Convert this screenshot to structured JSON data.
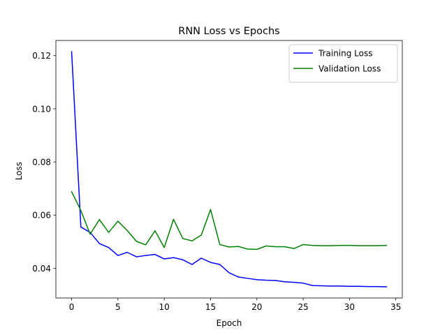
{
  "chart_data": {
    "type": "line",
    "title": "RNN Loss vs Epochs",
    "xlabel": "Epoch",
    "ylabel": "Loss",
    "xlim": [
      -1.7,
      35.7
    ],
    "ylim": [
      0.0288,
      0.1257
    ],
    "xticks": [
      0,
      5,
      10,
      15,
      20,
      25,
      30,
      35
    ],
    "yticks": [
      0.04,
      0.06,
      0.08,
      0.1,
      0.12
    ],
    "xtick_labels": [
      "0",
      "5",
      "10",
      "15",
      "20",
      "25",
      "30",
      "35"
    ],
    "ytick_labels": [
      "0.04",
      "0.06",
      "0.08",
      "0.10",
      "0.12"
    ],
    "grid": false,
    "legend_position": "top-right",
    "x": [
      0,
      1,
      2,
      3,
      4,
      5,
      6,
      7,
      8,
      9,
      10,
      11,
      12,
      13,
      14,
      15,
      16,
      17,
      18,
      19,
      20,
      21,
      22,
      23,
      24,
      25,
      26,
      27,
      28,
      29,
      30,
      31,
      32,
      33,
      34
    ],
    "series": [
      {
        "name": "Training Loss",
        "color": "#0000ff",
        "values": [
          0.1215,
          0.0555,
          0.0535,
          0.0493,
          0.0478,
          0.0448,
          0.046,
          0.0443,
          0.0448,
          0.0452,
          0.0435,
          0.044,
          0.0432,
          0.0414,
          0.0438,
          0.0422,
          0.0414,
          0.0383,
          0.0367,
          0.0362,
          0.0357,
          0.0355,
          0.0354,
          0.0349,
          0.0347,
          0.0344,
          0.0335,
          0.0334,
          0.0333,
          0.0333,
          0.0332,
          0.0332,
          0.0331,
          0.0331,
          0.033
        ]
      },
      {
        "name": "Validation Loss",
        "color": "#008000",
        "values": [
          0.0688,
          0.0617,
          0.0528,
          0.0583,
          0.0535,
          0.0577,
          0.0542,
          0.0501,
          0.0488,
          0.0541,
          0.0478,
          0.0584,
          0.0512,
          0.0503,
          0.0525,
          0.0621,
          0.0489,
          0.048,
          0.0482,
          0.0472,
          0.0471,
          0.0484,
          0.0481,
          0.0481,
          0.0474,
          0.0489,
          0.0486,
          0.0485,
          0.0485,
          0.0486,
          0.0486,
          0.0485,
          0.0485,
          0.0485,
          0.0486
        ]
      }
    ]
  }
}
